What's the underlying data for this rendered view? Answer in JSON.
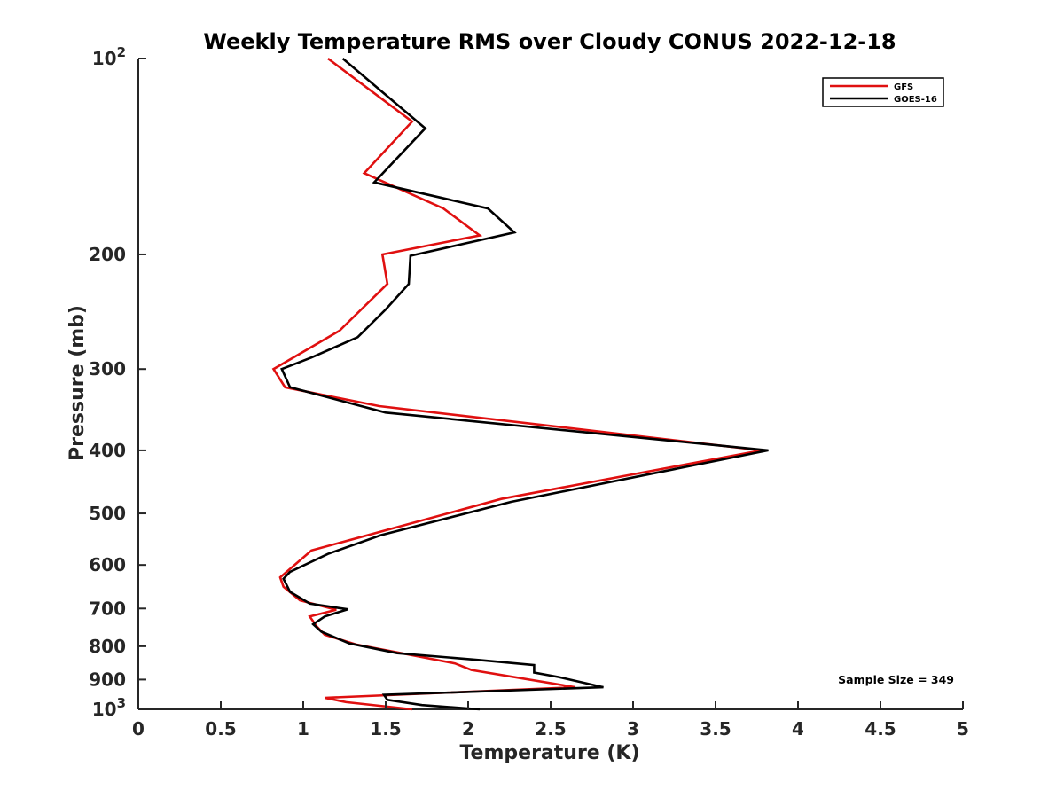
{
  "chart_data": {
    "type": "line",
    "title": "Weekly Temperature RMS over Cloudy CONUS 2022-12-18",
    "xlabel": "Temperature (K)",
    "ylabel": "Pressure (mb)",
    "xlim": [
      0,
      5
    ],
    "ylim": [
      100,
      1000
    ],
    "y_scale": "log",
    "y_reversed": true,
    "grid": false,
    "legend_position": "top-right",
    "x_ticks": [
      {
        "value": 0,
        "label": "0"
      },
      {
        "value": 0.5,
        "label": "0.5"
      },
      {
        "value": 1,
        "label": "1"
      },
      {
        "value": 1.5,
        "label": "1.5"
      },
      {
        "value": 2,
        "label": "2"
      },
      {
        "value": 2.5,
        "label": "2.5"
      },
      {
        "value": 3,
        "label": "3"
      },
      {
        "value": 3.5,
        "label": "3.5"
      },
      {
        "value": 4,
        "label": "4"
      },
      {
        "value": 4.5,
        "label": "4.5"
      },
      {
        "value": 5,
        "label": "5"
      }
    ],
    "y_ticks": [
      {
        "value": 100,
        "base": "10",
        "exp": "2"
      },
      {
        "value": 200,
        "label": "200"
      },
      {
        "value": 300,
        "label": "300"
      },
      {
        "value": 400,
        "label": "400"
      },
      {
        "value": 500,
        "label": "500"
      },
      {
        "value": 600,
        "label": "600"
      },
      {
        "value": 700,
        "label": "700"
      },
      {
        "value": 800,
        "label": "800"
      },
      {
        "value": 900,
        "label": "900"
      },
      {
        "value": 1000,
        "base": "10",
        "exp": "3"
      }
    ],
    "series": [
      {
        "name": "GFS",
        "color": "#e01010",
        "points": [
          [
            1.15,
            100
          ],
          [
            1.66,
            125
          ],
          [
            1.37,
            150
          ],
          [
            1.85,
            170
          ],
          [
            2.07,
            187
          ],
          [
            1.48,
            200
          ],
          [
            1.51,
            222
          ],
          [
            1.22,
            262
          ],
          [
            0.82,
            300
          ],
          [
            0.89,
            320
          ],
          [
            1.46,
            342
          ],
          [
            3.78,
            400
          ],
          [
            2.2,
            475
          ],
          [
            1.05,
            570
          ],
          [
            0.86,
            627
          ],
          [
            0.88,
            648
          ],
          [
            0.98,
            680
          ],
          [
            1.2,
            703
          ],
          [
            1.04,
            720
          ],
          [
            1.08,
            745
          ],
          [
            1.13,
            768
          ],
          [
            1.32,
            795
          ],
          [
            1.92,
            850
          ],
          [
            2.02,
            870
          ],
          [
            2.65,
            925
          ],
          [
            1.13,
            960
          ],
          [
            1.26,
            975
          ],
          [
            1.66,
            1000
          ]
        ]
      },
      {
        "name": "GOES-16",
        "color": "#000000",
        "points": [
          [
            1.24,
            100
          ],
          [
            1.74,
            128
          ],
          [
            1.43,
            155
          ],
          [
            2.12,
            170
          ],
          [
            2.28,
            185
          ],
          [
            1.65,
            201
          ],
          [
            1.64,
            222
          ],
          [
            1.5,
            243
          ],
          [
            1.33,
            268
          ],
          [
            1.05,
            288
          ],
          [
            0.87,
            300
          ],
          [
            0.92,
            320
          ],
          [
            1.5,
            350
          ],
          [
            3.82,
            400
          ],
          [
            2.26,
            480
          ],
          [
            1.47,
            540
          ],
          [
            1.15,
            577
          ],
          [
            0.92,
            615
          ],
          [
            0.88,
            630
          ],
          [
            0.92,
            660
          ],
          [
            1.04,
            688
          ],
          [
            1.27,
            702
          ],
          [
            1.13,
            720
          ],
          [
            1.06,
            740
          ],
          [
            1.11,
            760
          ],
          [
            1.28,
            792
          ],
          [
            1.57,
            820
          ],
          [
            2.07,
            840
          ],
          [
            2.4,
            855
          ],
          [
            2.4,
            878
          ],
          [
            2.55,
            892
          ],
          [
            2.82,
            925
          ],
          [
            1.49,
            950
          ],
          [
            1.51,
            967
          ],
          [
            1.72,
            985
          ],
          [
            2.07,
            1000
          ]
        ]
      }
    ],
    "annotation": "Sample Size = 349"
  }
}
